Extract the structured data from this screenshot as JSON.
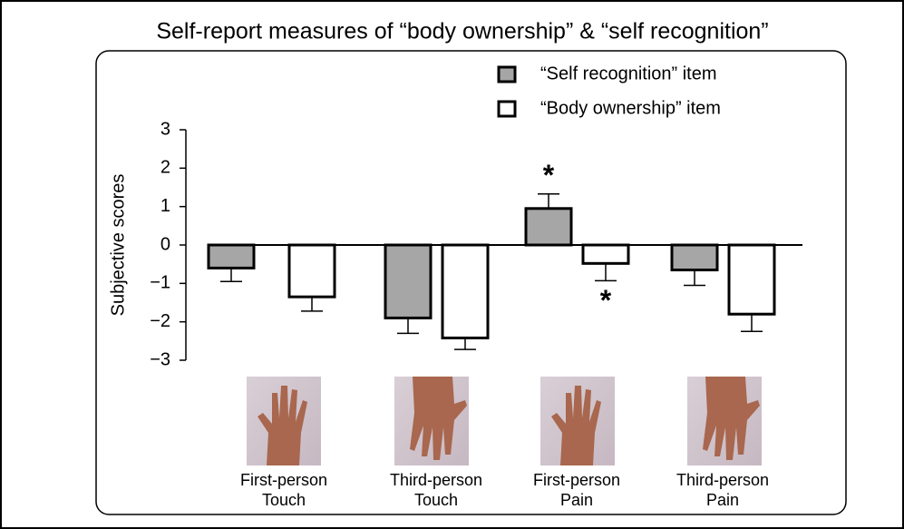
{
  "chart_data": {
    "type": "bar",
    "title": "Self-report measures of “body ownership” & “self recognition”",
    "y_label": "Subjective scores",
    "categories": [
      [
        "First-person",
        "Touch"
      ],
      [
        "Third-person",
        "Touch"
      ],
      [
        "First-person",
        "Pain"
      ],
      [
        "Third-person",
        "Pain"
      ]
    ],
    "series": [
      {
        "name": "“Self recognition” item",
        "color": "#a6a6a6",
        "values": [
          -0.6,
          -1.9,
          0.95,
          -0.65
        ],
        "errors": [
          0.35,
          0.4,
          0.38,
          0.4
        ]
      },
      {
        "name": "“Body ownership” item",
        "color": "#ffffff",
        "values": [
          -1.35,
          -2.42,
          -0.48,
          -1.8
        ],
        "errors": [
          0.37,
          0.3,
          0.45,
          0.45
        ]
      }
    ],
    "annotations": [
      "*",
      "*"
    ],
    "ylim": [
      -3,
      3
    ],
    "yticks": [
      {
        "value": -3,
        "label": "−3"
      },
      {
        "value": -2,
        "label": "−2"
      },
      {
        "value": -1,
        "label": "−1"
      },
      0,
      1,
      2,
      3
    ]
  }
}
